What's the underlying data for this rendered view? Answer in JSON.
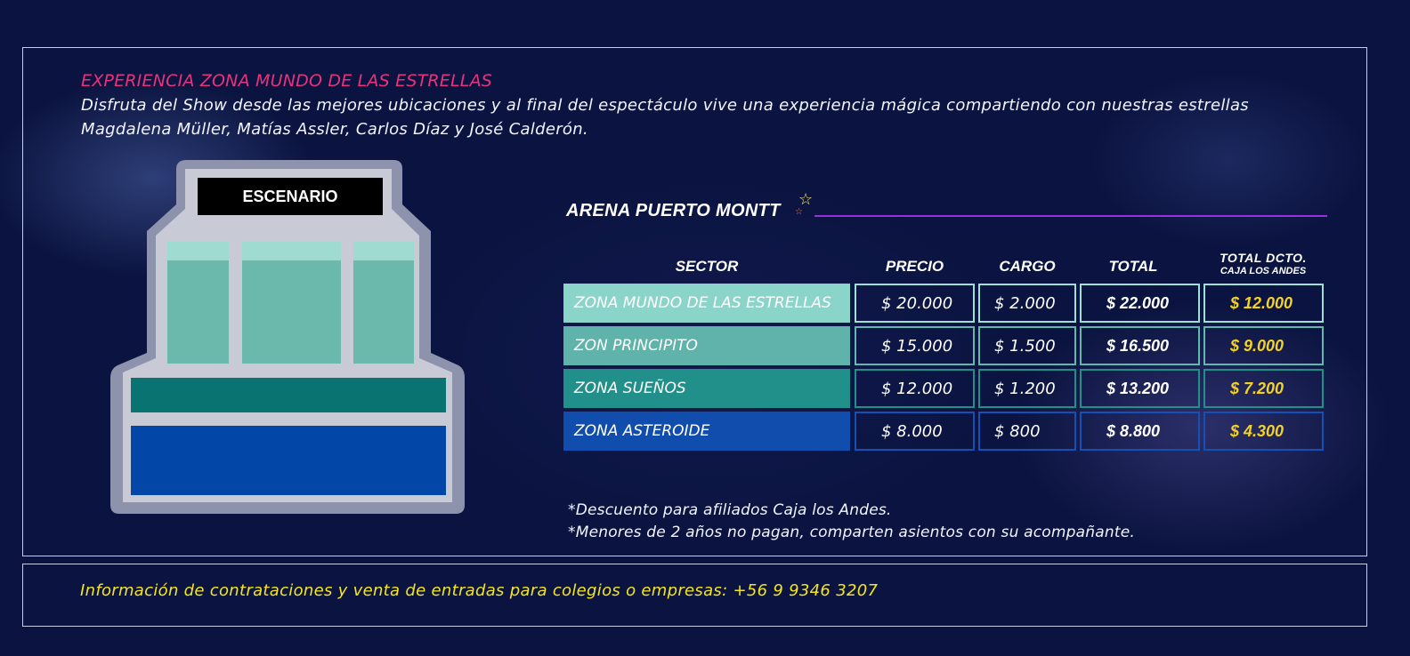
{
  "experience": {
    "title": "EXPERIENCIA ZONA MUNDO DE LAS ESTRELLAS",
    "description": "Disfruta del Show desde las mejores ubicaciones y al final del espectáculo vive una experiencia mágica compartiendo con nuestras estrellas Magdalena Müller, Matías Assler, Carlos Díaz y José Calderón."
  },
  "map": {
    "stage_label": "ESCENARIO",
    "colors": {
      "outer": "#8d93ad",
      "inner": "#c8cad6",
      "stage_bg": "#000000",
      "zone_estrellas_top": "#9fdbd0",
      "zone_estrellas": "#6bb9ad",
      "zone_suenos": "#087371",
      "zone_asteroide": "#0247a8"
    }
  },
  "venue": {
    "name": "ARENA PUERTO MONTT",
    "star_icon": "star-outline-icon"
  },
  "table": {
    "headers": {
      "sector": "SECTOR",
      "precio": "PRECIO",
      "cargo": "CARGO",
      "total": "TOTAL",
      "dcto_line1": "TOTAL DCTO.",
      "dcto_line2": "CAJA LOS ANDES"
    },
    "rows": [
      {
        "sector": "ZONA MUNDO DE LAS ESTRELLAS",
        "precio": "$ 20.000",
        "cargo": "$ 2.000",
        "total": "$ 22.000",
        "dcto": "$ 12.000",
        "color": "#8ad4c9",
        "border": "#9fe0d6"
      },
      {
        "sector": "ZON PRINCIPITO",
        "precio": "$ 15.000",
        "cargo": "$ 1.500",
        "total": "$ 16.500",
        "dcto": "$ 9.000",
        "color": "#5fb3aa",
        "border": "#61b8ae"
      },
      {
        "sector": "ZONA SUEÑOS",
        "precio": "$ 12.000",
        "cargo": "$ 1.200",
        "total": "$ 13.200",
        "dcto": "$ 7.200",
        "color": "#218f8a",
        "border": "#21908b"
      },
      {
        "sector": "ZONA ASTEROIDE",
        "precio": "$ 8.000",
        "cargo": "$ 800",
        "total": "$ 8.800",
        "dcto": "$ 4.300",
        "color": "#114dad",
        "border": "#1550b5"
      }
    ]
  },
  "notes": {
    "line1": "*Descuento para afiliados Caja los Andes.",
    "line2": "*Menores de 2 años no pagan, comparten asientos con su acompañante."
  },
  "footer": {
    "text": "Información de contrataciones y venta de entradas para colegios o empresas:  +56 9 9346 3207"
  }
}
